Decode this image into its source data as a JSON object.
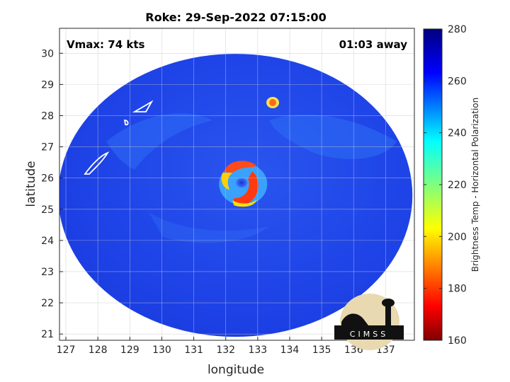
{
  "chart_data": {
    "type": "heatmap",
    "title": "Roke: 29-Sep-2022 07:15:00",
    "xlabel": "longitude",
    "ylabel": "latitude",
    "xlim": [
      126.8,
      137.9
    ],
    "ylim": [
      20.8,
      30.8
    ],
    "xticks": [
      "127",
      "128",
      "129",
      "130",
      "131",
      "132",
      "133",
      "134",
      "135",
      "136",
      "137"
    ],
    "yticks": [
      "21",
      "22",
      "23",
      "24",
      "25",
      "26",
      "27",
      "28",
      "29",
      "30"
    ],
    "grid": true,
    "annotations": {
      "vmax": "Vmax: 74 kts",
      "time_offset": "01:03 away"
    },
    "colorbar": {
      "label": "Brightness Temp - Horizontal Polarization",
      "range": [
        160,
        280
      ],
      "ticks": [
        "160",
        "180",
        "200",
        "220",
        "240",
        "260",
        "280"
      ],
      "colormap": "jet"
    },
    "storm_center": {
      "lon": 132.5,
      "lat": 25.85
    },
    "swath_center": {
      "lon": 132.3,
      "lat": 25.9
    },
    "logo": "CIMSS"
  }
}
